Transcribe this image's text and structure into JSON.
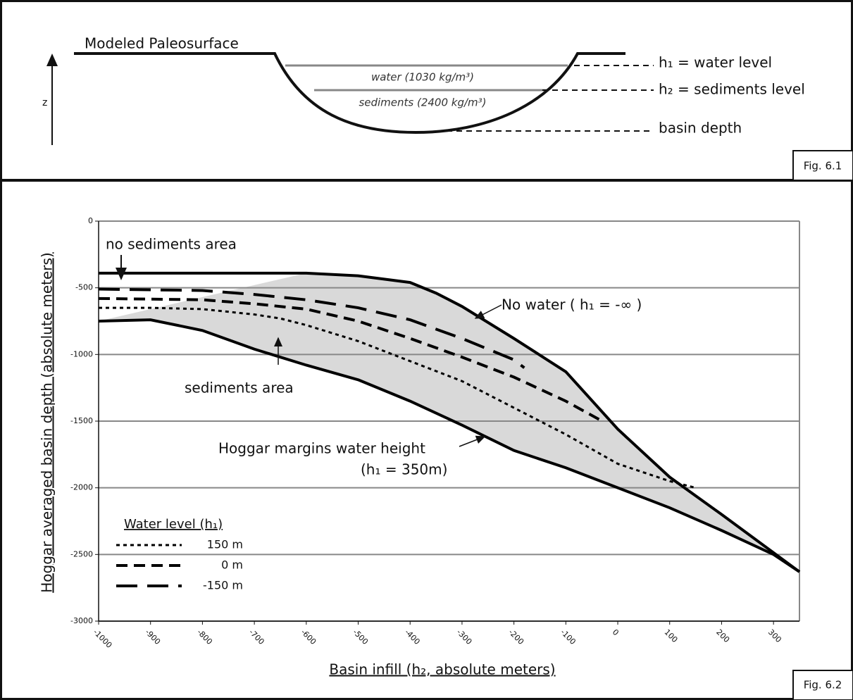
{
  "diagram": {
    "surface_label": "Modeled Paleosurface",
    "axis_label": "z",
    "water_label": "water (1030 kg/m³)",
    "sediments_label": "sediments (2400 kg/m³)",
    "h1_label": "h₁ = water level",
    "h2_label": "h₂ = sediments level",
    "depth_label": "basin depth",
    "fig_label": "Fig. 6.1"
  },
  "chart_data": {
    "type": "line",
    "fig_label": "Fig. 6.2",
    "x_label": "Basin infill (h₂, absolute meters)",
    "y_label": "Hoggar averaged basin depth (absolute meters)",
    "xlim": [
      -1000,
      350
    ],
    "ylim": [
      -3000,
      0
    ],
    "xticks": [
      -1000,
      -900,
      -800,
      -700,
      -600,
      -500,
      -400,
      -300,
      -200,
      -100,
      0,
      100,
      200,
      300
    ],
    "yticks": [
      0,
      -500,
      -1000,
      -1500,
      -2000,
      -2500,
      -3000
    ],
    "grid": true,
    "legend_title": "Water level (h₁)",
    "series": [
      {
        "name": "150 m",
        "color": "#000000",
        "x": [
          -1000,
          -900,
          -800,
          -700,
          -650,
          -600,
          -500,
          -400,
          -300,
          -200,
          -100,
          0,
          100,
          150
        ],
        "values": [
          -650,
          -650,
          -660,
          -700,
          -730,
          -780,
          -900,
          -1050,
          -1200,
          -1400,
          -1600,
          -1820,
          -1950,
          -2000
        ]
      },
      {
        "name": "0 m",
        "color": "#000000",
        "x": [
          -1000,
          -800,
          -700,
          -600,
          -500,
          -400,
          -300,
          -200,
          -100,
          -30
        ],
        "values": [
          -580,
          -590,
          -620,
          -660,
          -750,
          -880,
          -1020,
          -1170,
          -1350,
          -1500
        ]
      },
      {
        "name": "-150 m",
        "color": "#000000",
        "x": [
          -1000,
          -800,
          -700,
          -600,
          -500,
          -400,
          -300,
          -200,
          -180
        ],
        "values": [
          -510,
          -520,
          -550,
          -590,
          -650,
          -740,
          -880,
          -1040,
          -1100
        ]
      }
    ],
    "upper_curve": {
      "color": "#000000",
      "x": [
        -1000,
        -600,
        -500,
        -400,
        -350,
        -300,
        -200,
        -100,
        0,
        100,
        200,
        350
      ],
      "values": [
        -390,
        -390,
        -410,
        -460,
        -540,
        -640,
        -880,
        -1130,
        -1560,
        -1920,
        -2200,
        -2630
      ]
    },
    "lower_curve": {
      "color": "#000000",
      "x": [
        -1000,
        -900,
        -800,
        -700,
        -600,
        -500,
        -400,
        -300,
        -200,
        -100,
        0,
        100,
        200,
        300,
        350
      ],
      "values": [
        -750,
        -740,
        -820,
        -960,
        -1080,
        -1190,
        -1350,
        -1530,
        -1720,
        -1850,
        -2000,
        -2150,
        -2320,
        -2500,
        -2630
      ]
    },
    "fill_color": "#d9d9d9",
    "annotations": [
      "no sediments area",
      "No water ( h₁ = -∞ )",
      "sediments area",
      "Hoggar margins water height",
      "(h₁ = 350m)"
    ]
  }
}
